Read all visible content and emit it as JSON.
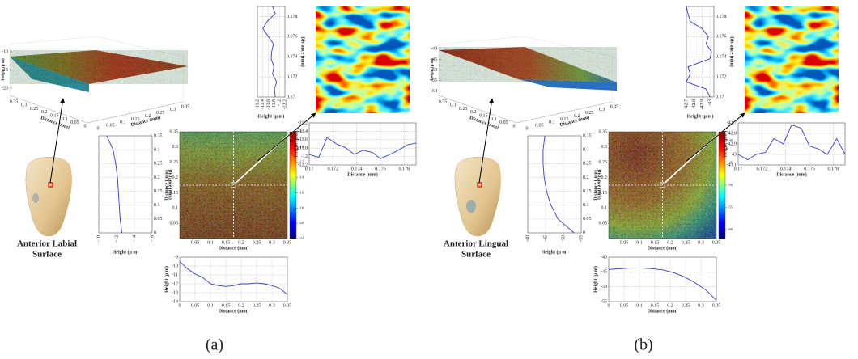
{
  "panels": [
    {
      "label": "(a)",
      "caption": [
        "Anterior Labial",
        "Surface"
      ],
      "surface": {
        "zlabel": "Height (μ m)",
        "zlim": [
          -22,
          -8
        ],
        "zticks": [
          -10,
          -15,
          -20
        ],
        "xlabel": "Distance (mm)",
        "xlim": [
          0,
          0.35
        ],
        "xticks": [
          0,
          0.05,
          0.1,
          0.15,
          0.2,
          0.25,
          0.3,
          0.35
        ],
        "ylabel": "Distance (mm)",
        "ylim": [
          0,
          0.35
        ],
        "yticks": [
          0,
          0.05,
          0.1,
          0.15,
          0.2,
          0.25,
          0.3,
          0.35
        ]
      },
      "map": {
        "xlabel": "Distance (mm)",
        "ylabel": "Distance (mm)",
        "xlim": [
          0,
          0.35
        ],
        "ylim": [
          0,
          0.35
        ],
        "xticks": [
          0.05,
          0.1,
          0.15,
          0.2,
          0.25,
          0.3,
          0.35
        ],
        "yticks": [
          0.05,
          0.1,
          0.15,
          0.2,
          0.25,
          0.3,
          0.35
        ],
        "clim": [
          -22,
          -8
        ],
        "cticks": [
          -8,
          -10,
          -12,
          -14,
          -16,
          -18,
          -20,
          -22
        ]
      },
      "profiles": [
        {
          "xlabel": "Distance (mm)",
          "ylabel": "Height (μ m)",
          "xlim": [
            0,
            0.35
          ],
          "ylim": [
            -14,
            -9
          ],
          "xticks": [
            0,
            0.05,
            0.1,
            0.15,
            0.2,
            0.25,
            0.3,
            0.35
          ],
          "yticks": [
            -9,
            -10,
            -11,
            -12,
            -13,
            -14
          ],
          "x": [
            0,
            0.025,
            0.05,
            0.075,
            0.1,
            0.125,
            0.15,
            0.175,
            0.2,
            0.225,
            0.25,
            0.275,
            0.3,
            0.325,
            0.35
          ],
          "values": [
            -9.5,
            -10.3,
            -10.9,
            -11.3,
            -12,
            -12.2,
            -12.3,
            -12.2,
            -12,
            -12,
            -11.9,
            -12,
            -12.2,
            -12.5,
            -13.2
          ]
        },
        {
          "xlabel": "Distance (mm)",
          "ylabel": "Height (μ m)",
          "xlim": [
            0,
            0.35
          ],
          "ylim": [
            -10,
            -16
          ],
          "xticks": [
            0,
            0.05,
            0.1,
            0.15,
            0.2,
            0.25,
            0.3,
            0.35
          ],
          "yticks": [
            -10,
            -12,
            -14,
            -16
          ],
          "x": [
            0,
            0.05,
            0.1,
            0.15,
            0.2,
            0.25,
            0.3,
            0.35
          ],
          "values": [
            -12.6,
            -12.4,
            -12.3,
            -12.2,
            -12.1,
            -11.9,
            -11.6,
            -10.9
          ]
        },
        {
          "xlabel": "Distance (mm)",
          "ylabel": "Height (μ m)",
          "xlim": [
            0.17,
            0.179
          ],
          "ylim": [
            -11.2,
            -12.2
          ],
          "xticks": [
            0.17,
            0.172,
            0.174,
            0.176,
            0.178
          ],
          "yticks": [
            -11.2,
            -11.4,
            -11.6,
            -11.8,
            -12,
            -12.2
          ],
          "x": [
            0.17,
            0.1708,
            0.1715,
            0.1723,
            0.173,
            0.1738,
            0.1745,
            0.1753,
            0.176,
            0.1768,
            0.1775,
            0.1783,
            0.179
          ],
          "values": [
            -11.85,
            -11.82,
            -11.9,
            -11.75,
            -11.8,
            -11.7,
            -11.72,
            -11.78,
            -11.6,
            -11.4,
            -11.55,
            -11.85,
            -11.75
          ]
        },
        {
          "xlabel": "Distance (mm)",
          "ylabel": "Height (μ m)",
          "xlim": [
            0.17,
            0.179
          ],
          "ylim": [
            -12.2,
            -11.2
          ],
          "xticks": [
            0.17,
            0.172,
            0.174,
            0.176,
            0.178
          ],
          "yticks": [
            -11.2,
            -11.4,
            -11.6,
            -11.8,
            -12,
            -12.2
          ],
          "x": [
            0.17,
            0.1708,
            0.1715,
            0.1723,
            0.173,
            0.1738,
            0.1745,
            0.1753,
            0.176,
            0.1768,
            0.1775,
            0.1783,
            0.179
          ],
          "values": [
            -11.95,
            -12.02,
            -11.55,
            -11.7,
            -11.78,
            -11.95,
            -11.85,
            -11.9,
            -12.05,
            -11.95,
            -11.85,
            -11.72,
            -11.68
          ]
        }
      ]
    },
    {
      "label": "(b)",
      "caption": [
        "Anterior Lingual",
        "Surface"
      ],
      "surface": {
        "zlabel": "Height (μ m)",
        "zlim": [
          -62,
          -38
        ],
        "zticks": [
          -40,
          -45,
          -50,
          -55,
          -60
        ],
        "xlabel": "Distance (mm)",
        "xlim": [
          0,
          0.35
        ],
        "xticks": [
          0,
          0.05,
          0.1,
          0.15,
          0.2,
          0.25,
          0.3,
          0.35
        ],
        "ylabel": "Distance (mm)",
        "ylim": [
          0,
          0.35
        ],
        "yticks": [
          0,
          0.05,
          0.1,
          0.15,
          0.2,
          0.25,
          0.3,
          0.35
        ]
      },
      "map": {
        "xlabel": "Distance (mm)",
        "ylabel": "Distance (mm)",
        "xlim": [
          0,
          0.35
        ],
        "ylim": [
          0,
          0.35
        ],
        "xticks": [
          0.05,
          0.1,
          0.15,
          0.2,
          0.25,
          0.3,
          0.35
        ],
        "yticks": [
          0.05,
          0.1,
          0.15,
          0.2,
          0.25,
          0.3,
          0.35
        ],
        "clim": [
          -62,
          -38
        ],
        "cticks": [
          -40,
          -45,
          -50,
          -55,
          -60
        ]
      },
      "profiles": [
        {
          "xlabel": "Distance (mm)",
          "ylabel": "Height (μ m)",
          "xlim": [
            0,
            0.35
          ],
          "ylim": [
            -55,
            -40
          ],
          "xticks": [
            0,
            0.05,
            0.1,
            0.15,
            0.2,
            0.25,
            0.3,
            0.35
          ],
          "yticks": [
            -40,
            -45,
            -50,
            -55
          ],
          "x": [
            0,
            0.035,
            0.07,
            0.105,
            0.14,
            0.175,
            0.21,
            0.245,
            0.28,
            0.315,
            0.35
          ],
          "values": [
            -44.2,
            -43.9,
            -43.7,
            -43.7,
            -43.9,
            -44.3,
            -45.2,
            -46.6,
            -48.6,
            -51,
            -54.5
          ]
        },
        {
          "xlabel": "Distance (mm)",
          "ylabel": "Height (μ m)",
          "xlim": [
            0,
            0.35
          ],
          "ylim": [
            -40,
            -55
          ],
          "xticks": [
            0,
            0.05,
            0.1,
            0.15,
            0.2,
            0.25,
            0.3,
            0.35
          ],
          "yticks": [
            -40,
            -45,
            -50,
            -55
          ],
          "x": [
            0,
            0.05,
            0.1,
            0.15,
            0.2,
            0.25,
            0.3,
            0.35
          ],
          "values": [
            -53,
            -48.5,
            -46.5,
            -45.3,
            -44.6,
            -44.3,
            -44.3,
            -44.8
          ]
        },
        {
          "xlabel": "Distance (mm)",
          "ylabel": "Height (μ m)",
          "xlim": [
            0.17,
            0.179
          ],
          "ylim": [
            -42.7,
            -43.05
          ],
          "xticks": [
            0.17,
            0.172,
            0.174,
            0.176,
            0.178
          ],
          "yticks": [
            -42.7,
            -42.8,
            -42.9,
            -43
          ],
          "x": [
            0.17,
            0.1708,
            0.1715,
            0.1723,
            0.173,
            0.1738,
            0.1745,
            0.1753,
            0.176,
            0.1768,
            0.1775,
            0.1783,
            0.179
          ],
          "values": [
            -43,
            -42.95,
            -42.7,
            -42.75,
            -42.72,
            -43,
            -43.02,
            -42.95,
            -42.98,
            -42.9,
            -42.75,
            -42.72,
            -42.7
          ]
        },
        {
          "xlabel": "Distance (mm)",
          "ylabel": "Height (μ m)",
          "xlim": [
            0.17,
            0.179
          ],
          "ylim": [
            -43.1,
            -42.7
          ],
          "xticks": [
            0.17,
            0.172,
            0.174,
            0.176,
            0.178
          ],
          "yticks": [
            -42.7,
            -42.8,
            -42.9,
            -43,
            -43.1
          ],
          "x": [
            0.17,
            0.1708,
            0.1715,
            0.1723,
            0.173,
            0.1738,
            0.1745,
            0.1753,
            0.176,
            0.1768,
            0.1775,
            0.1783,
            0.179
          ],
          "values": [
            -43,
            -43.05,
            -43,
            -42.98,
            -42.85,
            -42.9,
            -42.72,
            -42.75,
            -42.92,
            -42.95,
            -43,
            -42.85,
            -43
          ]
        }
      ]
    }
  ]
}
